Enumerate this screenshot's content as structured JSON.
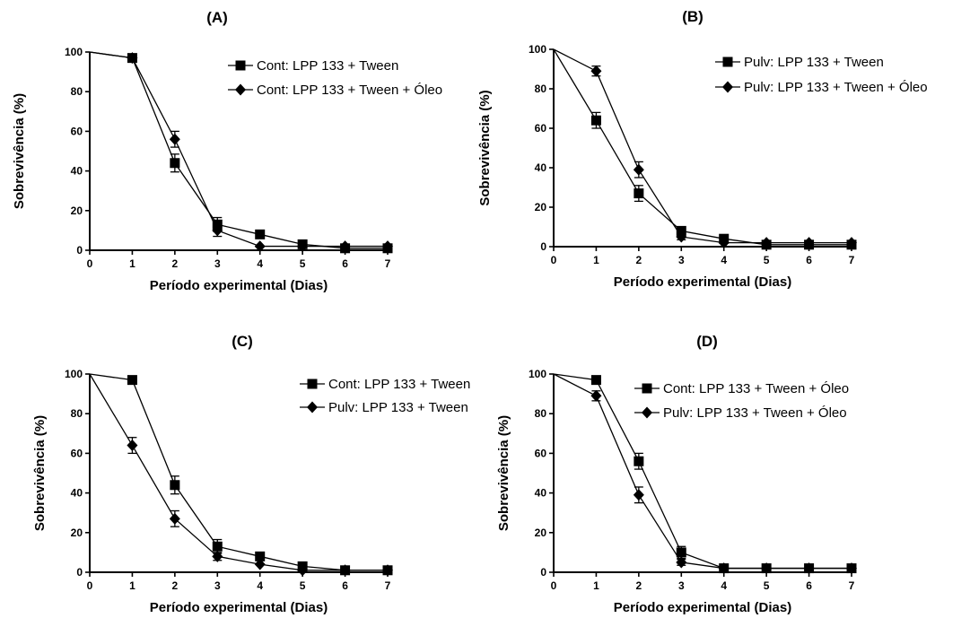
{
  "chart_data": [
    {
      "type": "line",
      "title": "(A)",
      "xlabel": "Período experimental (Dias)",
      "ylabel": "Sobrevivência (%)",
      "xlim": [
        0,
        7
      ],
      "ylim": [
        0,
        100
      ],
      "x_ticks": [
        0,
        1,
        2,
        3,
        4,
        5,
        6,
        7
      ],
      "y_ticks": [
        0,
        20,
        40,
        60,
        80,
        100
      ],
      "legend_position": "top-right",
      "grid": false,
      "series": [
        {
          "name": "Cont: LPP 133 + Tween",
          "marker": "square",
          "x": [
            0,
            1,
            2,
            3,
            4,
            5,
            6,
            7
          ],
          "y": [
            100,
            97,
            44,
            13,
            8,
            3,
            1,
            1
          ],
          "err": [
            0,
            1.5,
            4.5,
            3.5,
            2,
            1,
            0.5,
            0.5
          ]
        },
        {
          "name": "Cont: LPP 133 + Tween + Óleo",
          "marker": "diamond",
          "x": [
            0,
            1,
            2,
            3,
            4,
            5,
            6,
            7
          ],
          "y": [
            100,
            97,
            56,
            10,
            2,
            2,
            2,
            2
          ],
          "err": [
            0,
            1.5,
            4,
            3,
            0.5,
            0.5,
            0.5,
            0.5
          ]
        }
      ]
    },
    {
      "type": "line",
      "title": "(B)",
      "xlabel": "Período experimental (Dias)",
      "ylabel": "Sobrevivência (%)",
      "xlim": [
        0,
        7
      ],
      "ylim": [
        0,
        100
      ],
      "x_ticks": [
        0,
        1,
        2,
        3,
        4,
        5,
        6,
        7
      ],
      "y_ticks": [
        0,
        20,
        40,
        60,
        80,
        100
      ],
      "legend_position": "top-right",
      "grid": false,
      "series": [
        {
          "name": "Pulv: LPP 133 + Tween",
          "marker": "square",
          "x": [
            0,
            1,
            2,
            3,
            4,
            5,
            6,
            7
          ],
          "y": [
            100,
            64,
            27,
            8,
            4,
            1,
            1,
            1
          ],
          "err": [
            0,
            4,
            4,
            2,
            1,
            0.5,
            0.5,
            0.5
          ]
        },
        {
          "name": "Pulv: LPP 133 + Tween + Óleo",
          "marker": "diamond",
          "x": [
            0,
            1,
            2,
            3,
            4,
            5,
            6,
            7
          ],
          "y": [
            100,
            89,
            39,
            5,
            2,
            2,
            2,
            2
          ],
          "err": [
            0,
            2.5,
            4,
            1.5,
            0.5,
            0.5,
            0.5,
            0.5
          ]
        }
      ]
    },
    {
      "type": "line",
      "title": "(C)",
      "xlabel": "Período experimental (Dias)",
      "ylabel": "Sobrevivência (%)",
      "xlim": [
        0,
        7
      ],
      "ylim": [
        0,
        100
      ],
      "x_ticks": [
        0,
        1,
        2,
        3,
        4,
        5,
        6,
        7
      ],
      "y_ticks": [
        0,
        20,
        40,
        60,
        80,
        100
      ],
      "legend_position": "top-right",
      "grid": false,
      "series": [
        {
          "name": "Cont: LPP 133 + Tween",
          "marker": "square",
          "x": [
            0,
            1,
            2,
            3,
            4,
            5,
            6,
            7
          ],
          "y": [
            100,
            97,
            44,
            13,
            8,
            3,
            1,
            1
          ],
          "err": [
            0,
            1.5,
            4.5,
            3.5,
            2,
            1,
            0.5,
            0.5
          ]
        },
        {
          "name": "Pulv: LPP 133 + Tween",
          "marker": "diamond",
          "x": [
            0,
            1,
            2,
            3,
            4,
            5,
            6,
            7
          ],
          "y": [
            100,
            64,
            27,
            8,
            4,
            1,
            1,
            1
          ],
          "err": [
            0,
            4,
            4,
            2,
            1,
            0.5,
            0.5,
            0.5
          ]
        }
      ]
    },
    {
      "type": "line",
      "title": "(D)",
      "xlabel": "Período experimental (Dias)",
      "ylabel": "Sobrevivência (%)",
      "xlim": [
        0,
        7
      ],
      "ylim": [
        0,
        100
      ],
      "x_ticks": [
        0,
        1,
        2,
        3,
        4,
        5,
        6,
        7
      ],
      "y_ticks": [
        0,
        20,
        40,
        60,
        80,
        100
      ],
      "legend_position": "top-right",
      "grid": false,
      "series": [
        {
          "name": "Cont: LPP 133 + Tween + Óleo",
          "marker": "square",
          "x": [
            0,
            1,
            2,
            3,
            4,
            5,
            6,
            7
          ],
          "y": [
            100,
            97,
            56,
            10,
            2,
            2,
            2,
            2
          ],
          "err": [
            0,
            1.5,
            4,
            3,
            0.5,
            0.5,
            0.5,
            0.5
          ]
        },
        {
          "name": "Pulv: LPP 133 + Tween + Óleo",
          "marker": "diamond",
          "x": [
            0,
            1,
            2,
            3,
            4,
            5,
            6,
            7
          ],
          "y": [
            100,
            89,
            39,
            5,
            2,
            2,
            2,
            2
          ],
          "err": [
            0,
            2.5,
            4,
            1.5,
            0.5,
            0.5,
            0.5,
            0.5
          ]
        }
      ]
    }
  ]
}
